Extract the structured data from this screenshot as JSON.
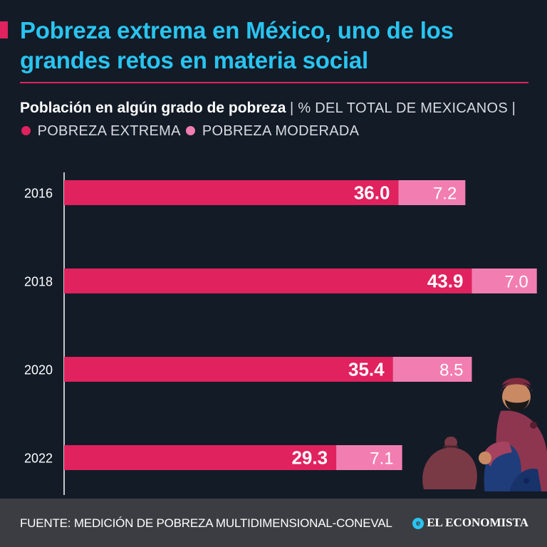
{
  "title": "Pobreza extrema en México, uno de los grandes retos en materia social",
  "subtitle": {
    "bold": "Población en algún grado de pobreza",
    "unit": "% DEL TOTAL DE MEXICANOS",
    "legend_extreme": "POBREZA EXTREMA",
    "legend_moderate": "POBREZA MODERADA"
  },
  "chart_data": {
    "type": "bar",
    "orientation": "horizontal",
    "stacked": true,
    "categories": [
      "2016",
      "2018",
      "2020",
      "2022"
    ],
    "series": [
      {
        "name": "POBREZA EXTREMA",
        "values": [
          36.0,
          43.9,
          35.4,
          29.3
        ],
        "color": "#e0225e"
      },
      {
        "name": "POBREZA MODERADA",
        "values": [
          7.2,
          7.0,
          8.5,
          7.1
        ],
        "color": "#f27eb1"
      }
    ],
    "xlim": [
      0,
      51
    ],
    "grid": false,
    "legend": "top-left"
  },
  "footer": {
    "source": "FUENTE: MEDICIÓN DE POBREZA MULTIDIMENSIONAL-CONEVAL",
    "brand": "EL ECONOMISTA"
  },
  "colors": {
    "background": "#131b27",
    "title": "#29c4f0",
    "accent": "#e0225e",
    "moderate": "#f27eb1",
    "footer": "#3b3d42"
  }
}
